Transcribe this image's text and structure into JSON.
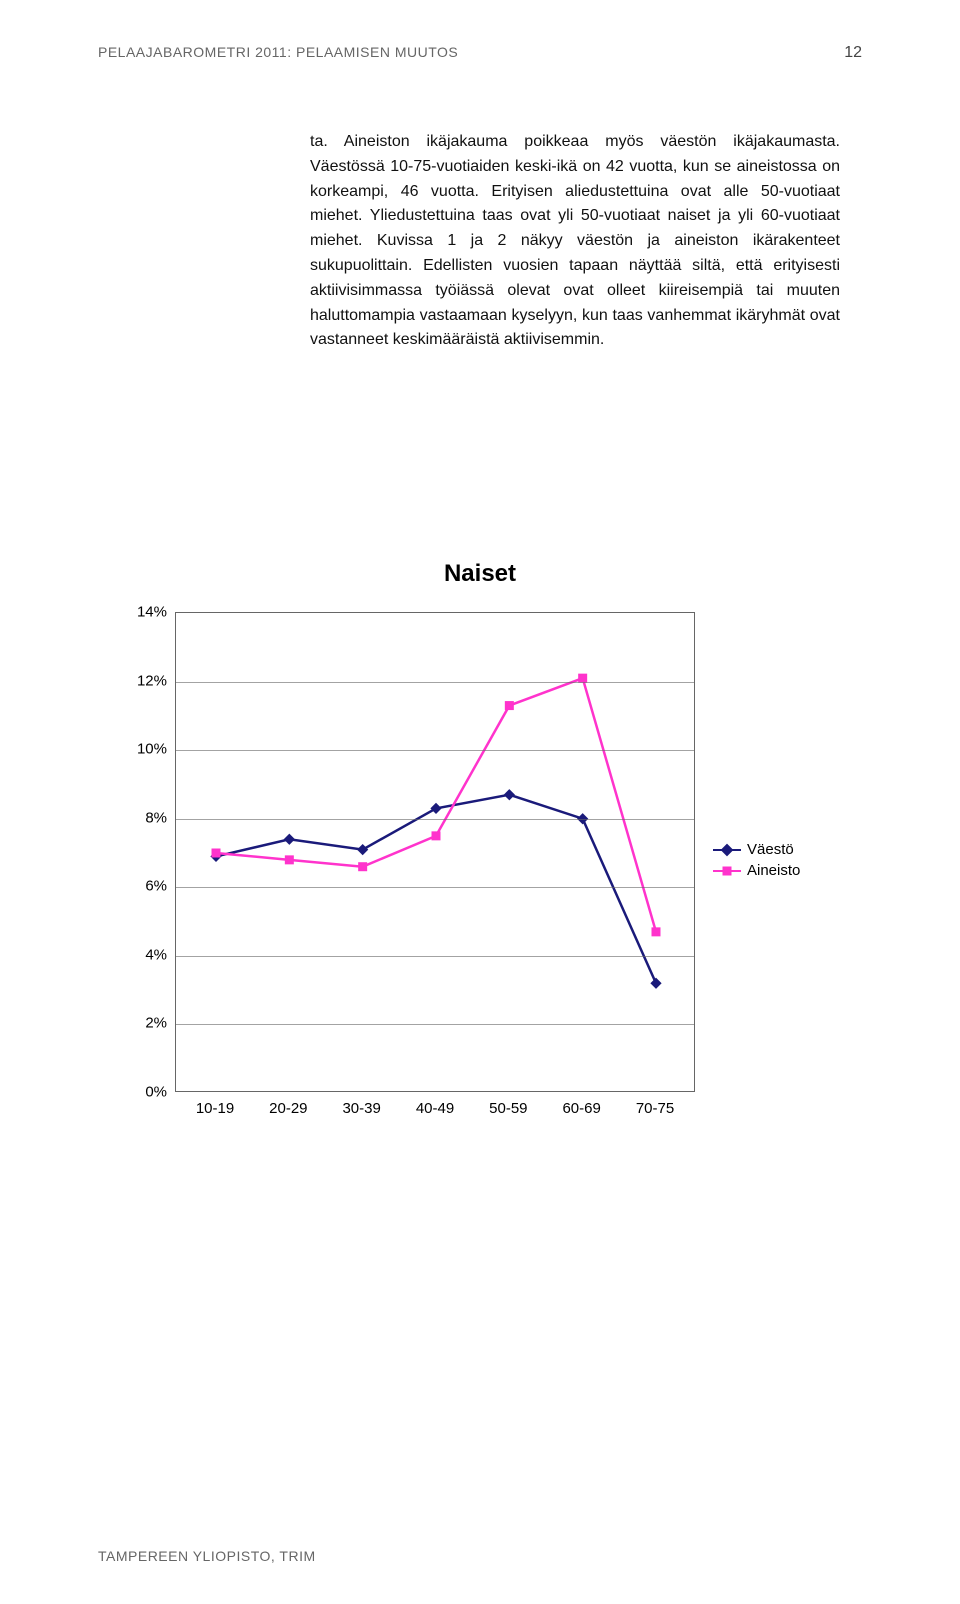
{
  "header": {
    "title": "PELAAJABAROMETRI 2011: PELAAMISEN MUUTOS",
    "page_number": "12"
  },
  "body": {
    "paragraph": "ta. Aineiston ikäjakauma poikkeaa myös väestön ikäjakaumasta. Väestössä 10-75-vuotiaiden keski-ikä on 42 vuotta, kun se aineistossa on korkeampi, 46 vuotta. Erityisen aliedustettuina ovat alle 50-vuotiaat miehet. Yliedustettuina taas ovat yli 50-vuotiaat naiset ja yli 60-vuotiaat miehet. Kuvissa 1 ja 2 näkyy väestön ja aineiston ikärakenteet sukupuolittain. Edellisten vuosien tapaan näyttää siltä, että erityisesti aktiivisimmassa työiässä olevat ovat olleet kiireisempiä tai muuten haluttomampia vastaamaan kyselyyn, kun taas vanhemmat ikäryhmät ovat vastanneet keskimääräistä aktiivisemmin."
  },
  "chart": {
    "type": "line",
    "title": "Naiset",
    "categories": [
      "10-19",
      "20-29",
      "30-39",
      "40-49",
      "50-59",
      "60-69",
      "70-75"
    ],
    "series": [
      {
        "name": "Väestö",
        "color": "#1a1a7a",
        "marker": "diamond",
        "values": [
          6.9,
          7.4,
          7.1,
          8.3,
          8.7,
          8.0,
          3.2
        ]
      },
      {
        "name": "Aineisto",
        "color": "#ff33cc",
        "marker": "square",
        "values": [
          7.0,
          6.8,
          6.6,
          7.5,
          11.3,
          12.1,
          4.7
        ]
      }
    ],
    "ylim": [
      0,
      14
    ],
    "ytick_step": 2,
    "ytick_labels": [
      "0%",
      "2%",
      "4%",
      "6%",
      "8%",
      "10%",
      "12%",
      "14%"
    ],
    "legend_labels": [
      "Väestö",
      "Aineisto"
    ],
    "background_color": "#ffffff",
    "grid_color": "#666666",
    "line_width": 2.5,
    "marker_size": 9,
    "title_fontsize": 24,
    "label_fontsize": 15
  },
  "footer": {
    "text": "TAMPEREEN YLIOPISTO, TRIM"
  }
}
